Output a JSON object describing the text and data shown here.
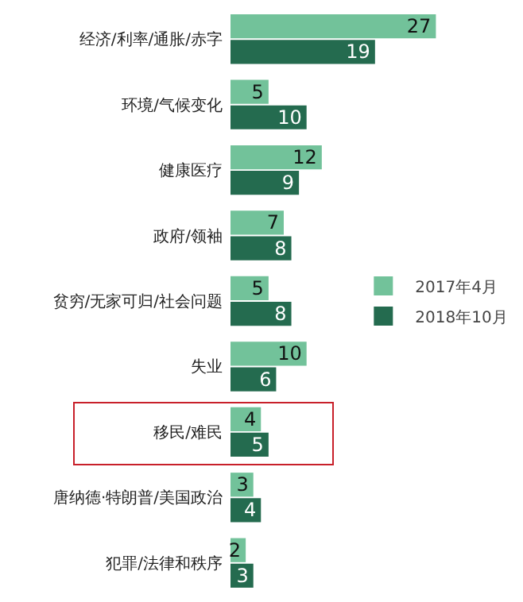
{
  "chart_data": {
    "type": "bar",
    "orientation": "horizontal",
    "categories": [
      "经济/利率/通胀/赤字",
      "环境/气候变化",
      "健康医疗",
      "政府/领袖",
      "贫穷/无家可归/社会问题",
      "失业",
      "移民/难民",
      "唐纳德·特朗普/美国政治",
      "犯罪/法律和秩序"
    ],
    "series": [
      {
        "name": "2017年4月",
        "color": "#72c29a",
        "values": [
          27,
          5,
          12,
          7,
          5,
          10,
          4,
          3,
          2
        ]
      },
      {
        "name": "2018年10月",
        "color": "#246b4f",
        "values": [
          19,
          10,
          9,
          8,
          8,
          6,
          5,
          4,
          3
        ]
      }
    ],
    "data_labels": true,
    "legend": "right"
  }
}
